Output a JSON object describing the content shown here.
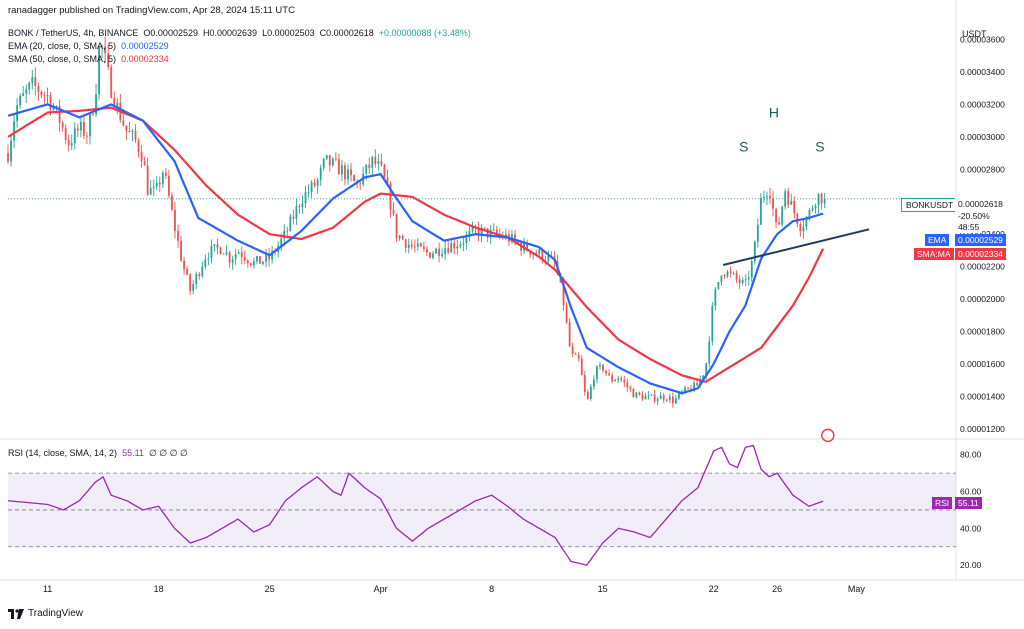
{
  "header": {
    "published": "ranadagger published on TradingView.com, Apr 28, 2024 15:11 UTC",
    "symbol": "BONK / TetherUS, 4h, BINANCE",
    "o_label": "O",
    "o": "0.00002529",
    "h_label": "H",
    "h": "0.00002639",
    "l_label": "L",
    "l": "0.00002503",
    "c_label": "C",
    "c": "0.00002618",
    "change": "+0.00000088 (+3.48%)",
    "ema_label": "EMA (20, close, 0, SMA, 5)",
    "ema_value": "0.00002529",
    "sma_label": "SMA (50, close, 0, SMA, 5)",
    "sma_value": "0.00002334",
    "rsi_label": "RSI (14, close, SMA, 14, 2)",
    "rsi_value": "55.11",
    "rsi_extra": "∅ ∅ ∅ ∅"
  },
  "currency": "USDT",
  "tags": {
    "symbol": "BONKUSDT",
    "price": "0.00002618",
    "change_pct": "-20.50%",
    "countdown": "48:55",
    "ema": "EMA",
    "ema_value": "0.00002529",
    "sma": "SMA:MA",
    "sma_value": "0.00002334",
    "rsi": "RSI",
    "rsi_value": "55.11"
  },
  "annotations": {
    "left_shoulder": "S",
    "head": "H",
    "right_shoulder": "S"
  },
  "branding": "TradingView",
  "colors": {
    "up": "#26a69a",
    "down": "#ef5350",
    "ema": "#2962ff",
    "sma": "#f23645",
    "rsi": "#9c27b0",
    "neckline": "#1e3a5f"
  },
  "chart_data": [
    {
      "type": "candlestick",
      "title": "BONK / TetherUS, 4h, BINANCE",
      "price_axis_ticks": [
        "0.00003600",
        "0.00003400",
        "0.00003200",
        "0.00003000",
        "0.00002800",
        "0.00002600",
        "0.00002400",
        "0.00002200",
        "0.00002000",
        "0.00001800",
        "0.00001600",
        "0.00001400",
        "0.00001200"
      ],
      "ylim": [
        1.15e-05,
        3.72e-05
      ],
      "x_ticks": [
        "11",
        "18",
        "25",
        "Apr",
        "8",
        "15",
        "22",
        "26",
        "May"
      ],
      "x_tick_days": [
        0,
        7,
        14,
        21,
        28,
        35,
        42,
        46,
        51
      ],
      "x_range_days": [
        -2.5,
        53.5
      ],
      "close_series_name": "BONKUSDT",
      "close_anchors": [
        [
          -2.5,
          2.9e-05
        ],
        [
          -2.0,
          3.18e-05
        ],
        [
          -1.0,
          3.32e-05
        ],
        [
          0.0,
          3.25e-05
        ],
        [
          0.7,
          3.12e-05
        ],
        [
          1.3,
          2.96e-05
        ],
        [
          2.0,
          3.05e-05
        ],
        [
          2.5,
          3.02e-05
        ],
        [
          3.0,
          3.25e-05
        ],
        [
          3.3,
          3.6e-05
        ],
        [
          3.6,
          3.48e-05
        ],
        [
          4.0,
          3.3e-05
        ],
        [
          4.5,
          3.15e-05
        ],
        [
          5.0,
          3.03e-05
        ],
        [
          5.5,
          2.98e-05
        ],
        [
          6.0,
          2.88e-05
        ],
        [
          6.3,
          2.68e-05
        ],
        [
          6.8,
          2.65e-05
        ],
        [
          7.3,
          2.8e-05
        ],
        [
          8.0,
          2.45e-05
        ],
        [
          8.5,
          2.22e-05
        ],
        [
          9.0,
          2.05e-05
        ],
        [
          10.0,
          2.28e-05
        ],
        [
          11.0,
          2.32e-05
        ],
        [
          11.5,
          2.25e-05
        ],
        [
          12.0,
          2.3e-05
        ],
        [
          13.0,
          2.22e-05
        ],
        [
          14.0,
          2.25e-05
        ],
        [
          15.0,
          2.4e-05
        ],
        [
          16.0,
          2.62e-05
        ],
        [
          17.0,
          2.72e-05
        ],
        [
          17.5,
          2.85e-05
        ],
        [
          18.5,
          2.8e-05
        ],
        [
          19.5,
          2.7e-05
        ],
        [
          20.5,
          2.85e-05
        ],
        [
          21.0,
          2.8e-05
        ],
        [
          21.5,
          2.65e-05
        ],
        [
          22.0,
          2.4e-05
        ],
        [
          23.0,
          2.32e-05
        ],
        [
          24.0,
          2.28e-05
        ],
        [
          25.0,
          2.32e-05
        ],
        [
          26.0,
          2.35e-05
        ],
        [
          27.0,
          2.42e-05
        ],
        [
          28.0,
          2.4e-05
        ],
        [
          29.0,
          2.38e-05
        ],
        [
          30.0,
          2.32e-05
        ],
        [
          31.0,
          2.28e-05
        ],
        [
          32.0,
          2.22e-05
        ],
        [
          32.5,
          2e-05
        ],
        [
          33.0,
          1.65e-05
        ],
        [
          33.5,
          1.62e-05
        ],
        [
          34.0,
          1.35e-05
        ],
        [
          34.5,
          1.55e-05
        ],
        [
          35.0,
          1.58e-05
        ],
        [
          35.5,
          1.5e-05
        ],
        [
          36.0,
          1.52e-05
        ],
        [
          37.0,
          1.41e-05
        ],
        [
          38.0,
          1.39e-05
        ],
        [
          39.0,
          1.4e-05
        ],
        [
          39.5,
          1.37e-05
        ],
        [
          40.0,
          1.42e-05
        ],
        [
          41.0,
          1.47e-05
        ],
        [
          41.5,
          1.58e-05
        ],
        [
          42.0,
          2e-05
        ],
        [
          42.5,
          2.18e-05
        ],
        [
          43.0,
          2.15e-05
        ],
        [
          44.0,
          2.08e-05
        ],
        [
          44.5,
          2.25e-05
        ],
        [
          45.0,
          2.62e-05
        ],
        [
          45.5,
          2.7e-05
        ],
        [
          46.0,
          2.4e-05
        ],
        [
          46.5,
          2.68e-05
        ],
        [
          47.0,
          2.55e-05
        ],
        [
          47.5,
          2.45e-05
        ],
        [
          48.0,
          2.52e-05
        ],
        [
          48.5,
          2.64e-05
        ],
        [
          49.0,
          2.62e-05
        ]
      ],
      "ema_series": {
        "name": "EMA (20, close, 0, SMA, 5)",
        "last": 2.529e-05,
        "anchors": [
          [
            -2.5,
            3.13e-05
          ],
          [
            0,
            3.2e-05
          ],
          [
            2,
            3.12e-05
          ],
          [
            4,
            3.2e-05
          ],
          [
            6,
            3.1e-05
          ],
          [
            8,
            2.85e-05
          ],
          [
            9.5,
            2.5e-05
          ],
          [
            12,
            2.36e-05
          ],
          [
            14,
            2.27e-05
          ],
          [
            16,
            2.42e-05
          ],
          [
            18,
            2.62e-05
          ],
          [
            20,
            2.75e-05
          ],
          [
            21,
            2.77e-05
          ],
          [
            22,
            2.62e-05
          ],
          [
            23,
            2.48e-05
          ],
          [
            25,
            2.36e-05
          ],
          [
            27,
            2.4e-05
          ],
          [
            29,
            2.38e-05
          ],
          [
            31,
            2.32e-05
          ],
          [
            32,
            2.24e-05
          ],
          [
            33,
            1.95e-05
          ],
          [
            34,
            1.7e-05
          ],
          [
            36,
            1.58e-05
          ],
          [
            38,
            1.48e-05
          ],
          [
            40,
            1.42e-05
          ],
          [
            41,
            1.45e-05
          ],
          [
            42,
            1.6e-05
          ],
          [
            43,
            1.8e-05
          ],
          [
            44,
            1.96e-05
          ],
          [
            45,
            2.25e-05
          ],
          [
            46,
            2.4e-05
          ],
          [
            47,
            2.48e-05
          ],
          [
            48,
            2.5e-05
          ],
          [
            49,
            2.53e-05
          ]
        ]
      },
      "sma_series": {
        "name": "SMA (50, close, 0, SMA, 5)",
        "last": 2.334e-05,
        "anchors": [
          [
            -2.5,
            3e-05
          ],
          [
            0,
            3.15e-05
          ],
          [
            2,
            3.16e-05
          ],
          [
            4,
            3.18e-05
          ],
          [
            6,
            3.1e-05
          ],
          [
            8,
            2.92e-05
          ],
          [
            10,
            2.7e-05
          ],
          [
            12,
            2.52e-05
          ],
          [
            14,
            2.4e-05
          ],
          [
            16,
            2.37e-05
          ],
          [
            18,
            2.44e-05
          ],
          [
            20,
            2.6e-05
          ],
          [
            21,
            2.65e-05
          ],
          [
            23,
            2.63e-05
          ],
          [
            25,
            2.52e-05
          ],
          [
            27,
            2.44e-05
          ],
          [
            29,
            2.38e-05
          ],
          [
            31,
            2.26e-05
          ],
          [
            32,
            2.18e-05
          ],
          [
            34,
            1.95e-05
          ],
          [
            36,
            1.75e-05
          ],
          [
            38,
            1.63e-05
          ],
          [
            40,
            1.53e-05
          ],
          [
            41.5,
            1.49e-05
          ],
          [
            43,
            1.58e-05
          ],
          [
            45,
            1.7e-05
          ],
          [
            47,
            1.96e-05
          ],
          [
            48,
            2.13e-05
          ],
          [
            49,
            2.33e-05
          ]
        ]
      },
      "last_price": 2.618e-05,
      "pattern": "head-and-shoulders"
    },
    {
      "type": "line",
      "title": "RSI (14, close, SMA, 14, 2)",
      "rsi_axis_ticks": [
        "80.00",
        "60.00",
        "40.00",
        "20.00"
      ],
      "ylim": [
        13,
        88
      ],
      "band": [
        30,
        70
      ],
      "series": [
        {
          "name": "RSI",
          "last": 55.11,
          "anchors": [
            [
              -2.5,
              55
            ],
            [
              0,
              53
            ],
            [
              1,
              50
            ],
            [
              2,
              55
            ],
            [
              3,
              65
            ],
            [
              3.5,
              68
            ],
            [
              4,
              58
            ],
            [
              5,
              55
            ],
            [
              6,
              50
            ],
            [
              7,
              52
            ],
            [
              8,
              40
            ],
            [
              9,
              32
            ],
            [
              10,
              35
            ],
            [
              11,
              40
            ],
            [
              12,
              45
            ],
            [
              13,
              38
            ],
            [
              14,
              42
            ],
            [
              15,
              55
            ],
            [
              16,
              62
            ],
            [
              17,
              68
            ],
            [
              18,
              60
            ],
            [
              18.5,
              58
            ],
            [
              19,
              70
            ],
            [
              20,
              62
            ],
            [
              21,
              56
            ],
            [
              22,
              40
            ],
            [
              23,
              33
            ],
            [
              24,
              40
            ],
            [
              25,
              45
            ],
            [
              26,
              50
            ],
            [
              27,
              55
            ],
            [
              28,
              58
            ],
            [
              29,
              52
            ],
            [
              30,
              45
            ],
            [
              31,
              40
            ],
            [
              32,
              35
            ],
            [
              33,
              22
            ],
            [
              34,
              20
            ],
            [
              35,
              32
            ],
            [
              36,
              40
            ],
            [
              37,
              38
            ],
            [
              38,
              35
            ],
            [
              39,
              45
            ],
            [
              40,
              55
            ],
            [
              41,
              62
            ],
            [
              42,
              82
            ],
            [
              42.5,
              84
            ],
            [
              43,
              75
            ],
            [
              43.5,
              73
            ],
            [
              44,
              84
            ],
            [
              44.5,
              85
            ],
            [
              45,
              72
            ],
            [
              45.5,
              68
            ],
            [
              46,
              70
            ],
            [
              47,
              58
            ],
            [
              48,
              52
            ],
            [
              49,
              55
            ]
          ]
        }
      ]
    }
  ]
}
